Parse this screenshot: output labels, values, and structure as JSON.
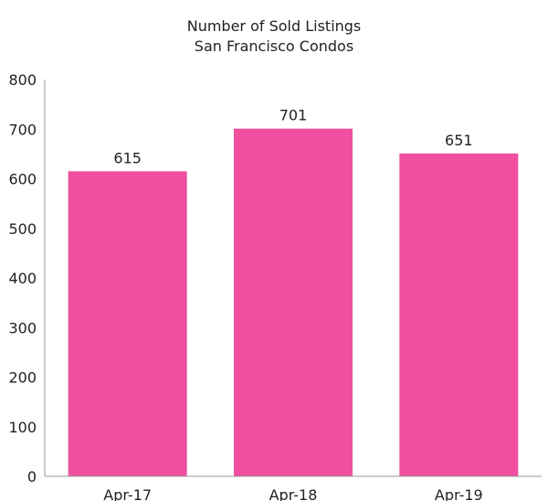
{
  "chart_data": {
    "type": "bar",
    "title": "Number of Sold Listings",
    "subtitle": "San Francisco Condos",
    "categories": [
      "Apr-17",
      "Apr-18",
      "Apr-19"
    ],
    "values": [
      615,
      701,
      651
    ],
    "data_labels": [
      "615",
      "701",
      "651"
    ],
    "ylim": [
      0,
      800
    ],
    "yticks": [
      0,
      100,
      200,
      300,
      400,
      500,
      600,
      700,
      800
    ],
    "xlabel": "",
    "ylabel": "",
    "grid": false,
    "legend": "none",
    "bar_color": "#ef4f9e",
    "axis_color": "#9a9a9a",
    "text_color": "#222222"
  }
}
